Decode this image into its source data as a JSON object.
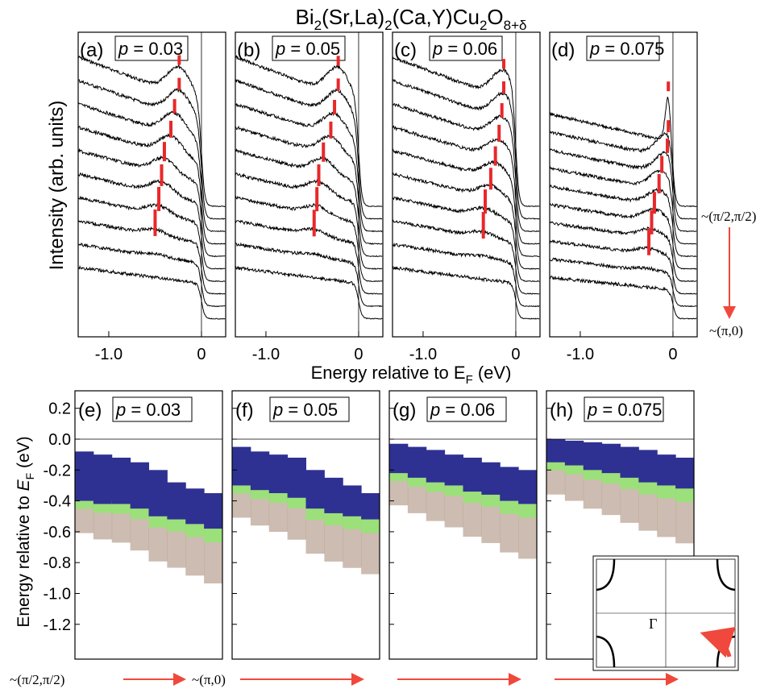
{
  "title": {
    "segments": [
      "Bi",
      "2",
      "(Sr,La)",
      "2",
      "(Ca,Y)Cu",
      "2",
      "O",
      "8+δ"
    ]
  },
  "top_panels": [
    {
      "label": "(a)",
      "symbol": "p",
      "value": "= 0.03",
      "xticks": [
        "-1.0",
        "0"
      ]
    },
    {
      "label": "(b)",
      "symbol": "p",
      "value": "= 0.05",
      "xticks": [
        "-1.0",
        "0"
      ]
    },
    {
      "label": "(c)",
      "symbol": "p",
      "value": "= 0.06",
      "xticks": [
        "-1.0",
        "0"
      ]
    },
    {
      "label": "(d)",
      "symbol": "p",
      "value": "= 0.075",
      "xticks": [
        "-1.0",
        "0"
      ]
    }
  ],
  "top_ylabel": "Intensity (arb. units)",
  "top_xlabel": {
    "segments": [
      "Energy relative to E",
      "F",
      " (eV)"
    ]
  },
  "right_labels": [
    "~(π/2,π/2)",
    "~(π,0)"
  ],
  "bottom_panels": [
    {
      "label": "(e)",
      "symbol": "p",
      "value": "= 0.03"
    },
    {
      "label": "(f)",
      "symbol": "p",
      "value": "= 0.05"
    },
    {
      "label": "(g)",
      "symbol": "p",
      "value": "= 0.06"
    },
    {
      "label": "(h)",
      "symbol": "p",
      "value": "= 0.075"
    }
  ],
  "bottom_yticks": [
    "0.2",
    "0.0",
    "-0.2",
    "-0.4",
    "-0.6",
    "-0.8",
    "-1.0",
    "-1.2"
  ],
  "bottom_ylabel": {
    "segments": [
      "Energy relative to ",
      "E",
      "F",
      " (eV)"
    ]
  },
  "bottom_labels": [
    "~(π/2,π/2)",
    "~(π,0)"
  ],
  "inset": {
    "label": "Γ"
  }
}
